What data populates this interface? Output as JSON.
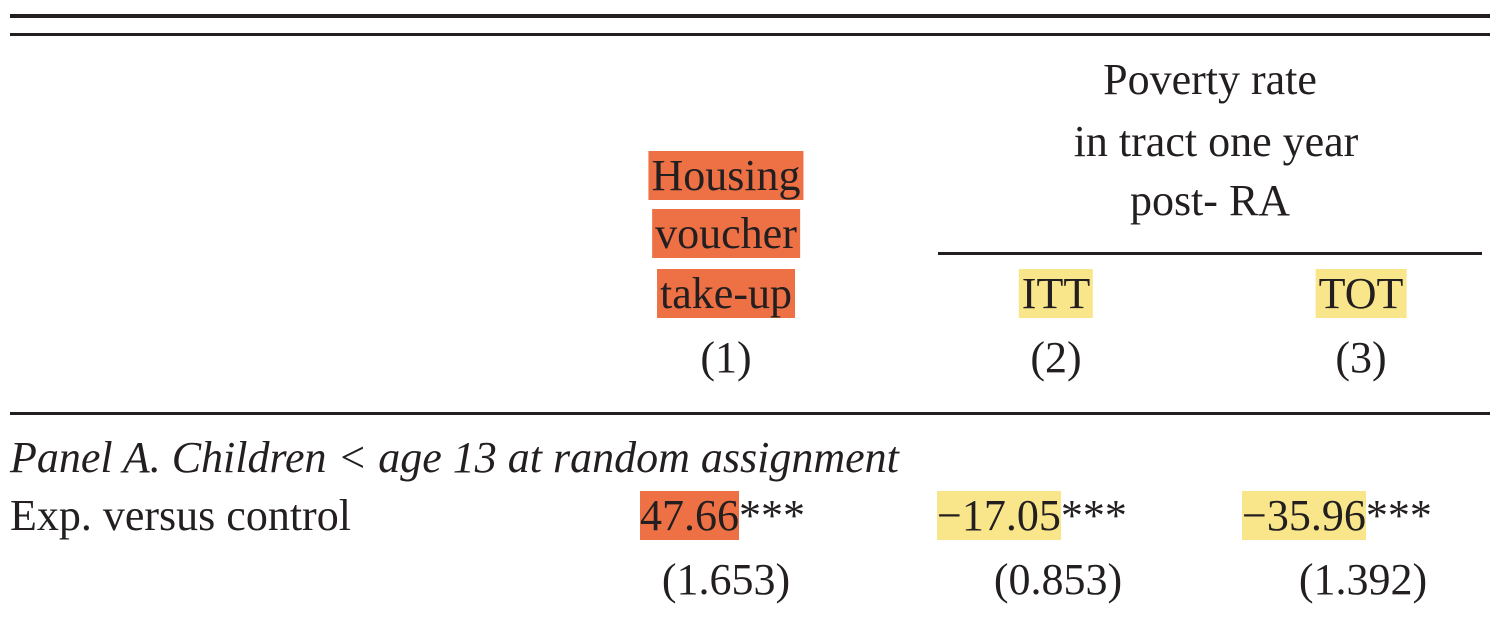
{
  "table": {
    "group_header": {
      "line1": "Poverty rate",
      "line2": "in tract one year",
      "line3": "post- RA"
    },
    "columns": [
      {
        "name_lines": [
          "Housing",
          "voucher",
          "take-up"
        ],
        "number": "(1)",
        "highlight_color": "#ee7045"
      },
      {
        "name_lines": [
          "ITT"
        ],
        "number": "(2)",
        "highlight_color": "#f9e68b"
      },
      {
        "name_lines": [
          "TOT"
        ],
        "number": "(3)",
        "highlight_color": "#f9e68b"
      }
    ],
    "panel_a": {
      "title": "Panel A. Children < age 13 at random assignment",
      "rows": [
        {
          "label": "Exp. versus control",
          "values": [
            {
              "estimate": "47.66",
              "stars": "***",
              "se": "(1.653)"
            },
            {
              "estimate": "−17.05",
              "stars": "***",
              "se": "(0.853)"
            },
            {
              "estimate": "−35.96",
              "stars": "***",
              "se": "(1.392)"
            }
          ]
        }
      ]
    }
  }
}
